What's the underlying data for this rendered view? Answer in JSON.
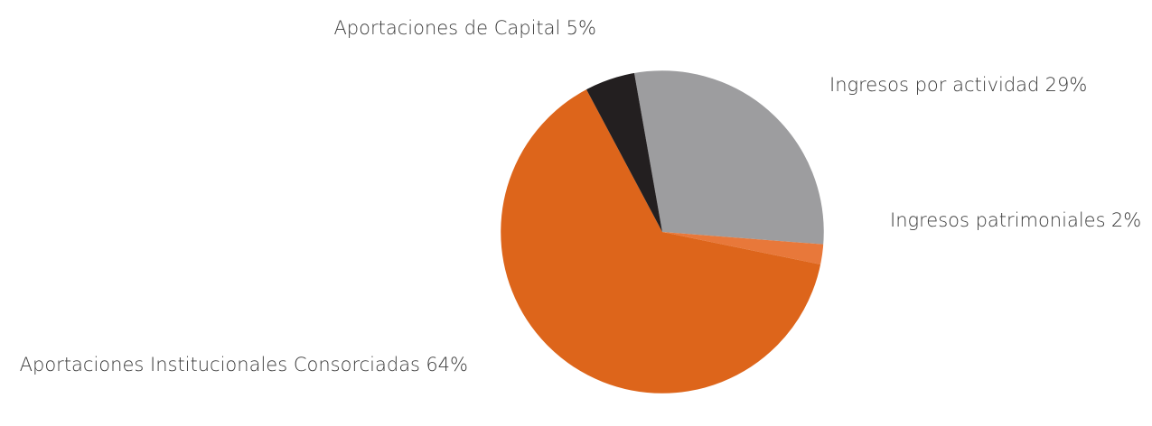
{
  "chart_data": {
    "type": "pie",
    "categories": [
      "Ingresos por actividad",
      "Ingresos patrimoniales",
      "Aportaciones Institucionales Consorciadas",
      "Aportaciones de Capital"
    ],
    "values": [
      29,
      2,
      64,
      5
    ],
    "value_labels": [
      "29%",
      "2%",
      "64%",
      "5%"
    ],
    "colors": [
      "#9d9d9f",
      "#e8783a",
      "#dd651b",
      "#231f20"
    ]
  }
}
